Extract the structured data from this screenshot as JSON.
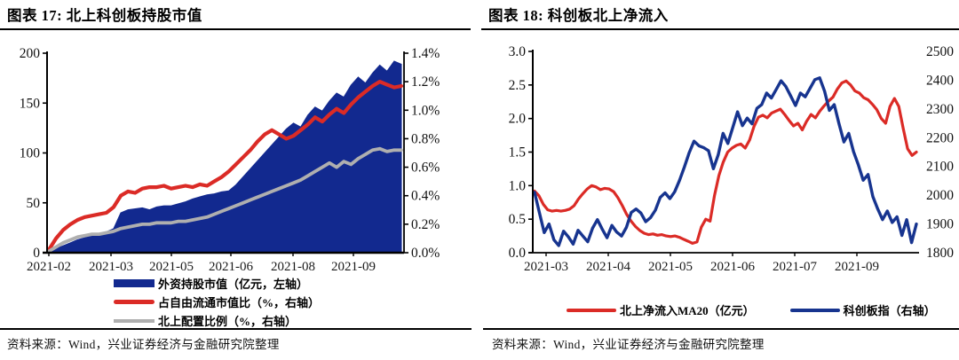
{
  "panels": [
    {
      "title": "图表 17: 北上科创板持股市值",
      "source": "资料来源：Wind，兴业证券经济与金融研究院整理"
    },
    {
      "title": "图表 18: 科创板北上净流入",
      "source": "资料来源：Wind，兴业证券经济与金融研究院整理"
    }
  ],
  "colors": {
    "navy_fill": "#12298F",
    "red_line": "#DB2B26",
    "gray_line": "#AFAFAF",
    "blue_line": "#17348F",
    "axis": "#000000",
    "tick_text": "#1a1a1a"
  },
  "chart_data": [
    {
      "type": "area",
      "title": "北上科创板持股市值",
      "legend_position": "bottom",
      "grid": false,
      "x_ticks": [
        "2021-02",
        "2021-03",
        "2021-05",
        "2021-06",
        "2021-08",
        "2021-09"
      ],
      "left_axis": {
        "min": 0,
        "max": 200,
        "tick_labels": [
          "0",
          "50",
          "100",
          "150",
          "200"
        ]
      },
      "right_axis": {
        "min": 0,
        "max": 1.4,
        "tick_labels": [
          "0.0%",
          "0.2%",
          "0.4%",
          "0.6%",
          "0.8%",
          "1.0%",
          "1.2%",
          "1.4%"
        ]
      },
      "series": [
        {
          "name": "外资持股市值（亿元，左轴）",
          "kind": "area",
          "axis": "left",
          "color": "#12298F",
          "values": [
            2,
            4,
            7,
            10,
            13,
            15,
            17,
            19,
            21,
            24,
            40,
            43,
            44,
            45,
            43,
            46,
            47,
            47,
            49,
            51,
            54,
            56,
            58,
            59,
            61,
            62,
            68,
            76,
            84,
            92,
            100,
            108,
            116,
            124,
            130,
            126,
            138,
            146,
            142,
            152,
            160,
            156,
            168,
            176,
            170,
            180,
            188,
            182,
            192,
            189
          ]
        },
        {
          "name": "占自由流通市值比（%，右轴）",
          "kind": "line",
          "axis": "right",
          "color": "#DB2B26",
          "values": [
            0.02,
            0.1,
            0.16,
            0.2,
            0.23,
            0.25,
            0.26,
            0.27,
            0.28,
            0.32,
            0.4,
            0.43,
            0.42,
            0.45,
            0.46,
            0.46,
            0.47,
            0.45,
            0.46,
            0.47,
            0.46,
            0.48,
            0.47,
            0.5,
            0.53,
            0.57,
            0.62,
            0.67,
            0.72,
            0.78,
            0.83,
            0.86,
            0.83,
            0.8,
            0.82,
            0.86,
            0.9,
            0.95,
            0.92,
            0.97,
            1.01,
            0.98,
            1.04,
            1.09,
            1.13,
            1.17,
            1.2,
            1.18,
            1.16,
            1.17
          ]
        },
        {
          "name": "北上配置比例（%，右轴）",
          "kind": "line",
          "axis": "right",
          "color": "#AFAFAF",
          "values": [
            0.01,
            0.04,
            0.07,
            0.09,
            0.11,
            0.12,
            0.13,
            0.13,
            0.14,
            0.15,
            0.17,
            0.18,
            0.19,
            0.2,
            0.2,
            0.21,
            0.21,
            0.21,
            0.22,
            0.22,
            0.23,
            0.24,
            0.25,
            0.27,
            0.29,
            0.31,
            0.33,
            0.35,
            0.37,
            0.39,
            0.41,
            0.43,
            0.45,
            0.47,
            0.49,
            0.51,
            0.54,
            0.57,
            0.6,
            0.63,
            0.6,
            0.64,
            0.62,
            0.66,
            0.69,
            0.72,
            0.73,
            0.71,
            0.72,
            0.72
          ]
        }
      ]
    },
    {
      "type": "line",
      "title": "科创板北上净流入",
      "legend_position": "bottom",
      "grid": false,
      "x_ticks": [
        "2021-03",
        "2021-04",
        "2021-05",
        "2021-06",
        "2021-07",
        "2021-09"
      ],
      "left_axis": {
        "min": 0,
        "max": 3,
        "tick_labels": [
          "0.0",
          "0.5",
          "1.0",
          "1.5",
          "2.0",
          "2.5",
          "3.0"
        ]
      },
      "right_axis": {
        "min": 1800,
        "max": 2500,
        "tick_labels": [
          "1800",
          "1900",
          "2000",
          "2100",
          "2200",
          "2300",
          "2400",
          "2500"
        ]
      },
      "series": [
        {
          "name": "北上净流入MA20（亿元）",
          "kind": "line",
          "axis": "left",
          "color": "#DB2B26",
          "values": [
            0.92,
            0.85,
            0.72,
            0.64,
            0.62,
            0.63,
            0.62,
            0.63,
            0.65,
            0.7,
            0.8,
            0.88,
            0.95,
            1.0,
            0.98,
            0.94,
            0.96,
            0.95,
            0.91,
            0.82,
            0.7,
            0.57,
            0.47,
            0.39,
            0.33,
            0.29,
            0.27,
            0.28,
            0.26,
            0.27,
            0.25,
            0.24,
            0.25,
            0.23,
            0.2,
            0.17,
            0.14,
            0.16,
            0.38,
            0.5,
            0.47,
            0.85,
            1.15,
            1.35,
            1.5,
            1.56,
            1.6,
            1.62,
            1.56,
            1.68,
            1.88,
            2.02,
            2.05,
            2.01,
            2.08,
            2.11,
            2.14,
            2.06,
            1.97,
            1.89,
            1.93,
            1.83,
            1.96,
            2.06,
            2.01,
            2.11,
            2.19,
            2.26,
            2.32,
            2.44,
            2.53,
            2.56,
            2.5,
            2.41,
            2.38,
            2.31,
            2.28,
            2.21,
            2.13,
            2.0,
            1.93,
            2.18,
            2.3,
            2.18,
            1.85,
            1.55,
            1.45,
            1.5
          ]
        },
        {
          "name": "科创板指（右轴）",
          "kind": "line",
          "axis": "right",
          "color": "#17348F",
          "values": [
            2010,
            1940,
            1870,
            1900,
            1845,
            1825,
            1875,
            1855,
            1830,
            1878,
            1858,
            1838,
            1885,
            1915,
            1882,
            1852,
            1895,
            1872,
            1858,
            1888,
            1940,
            1952,
            1938,
            1908,
            1922,
            1948,
            1992,
            2008,
            1988,
            2012,
            2052,
            2098,
            2148,
            2188,
            2172,
            2165,
            2155,
            2092,
            2140,
            2215,
            2180,
            2235,
            2290,
            2242,
            2268,
            2248,
            2302,
            2315,
            2355,
            2338,
            2368,
            2398,
            2378,
            2345,
            2312,
            2355,
            2342,
            2372,
            2402,
            2408,
            2362,
            2295,
            2315,
            2248,
            2185,
            2215,
            2152,
            2105,
            2052,
            2072,
            1995,
            1952,
            1915,
            1945,
            1905,
            1925,
            1860,
            1915,
            1835,
            1900
          ]
        }
      ]
    }
  ]
}
